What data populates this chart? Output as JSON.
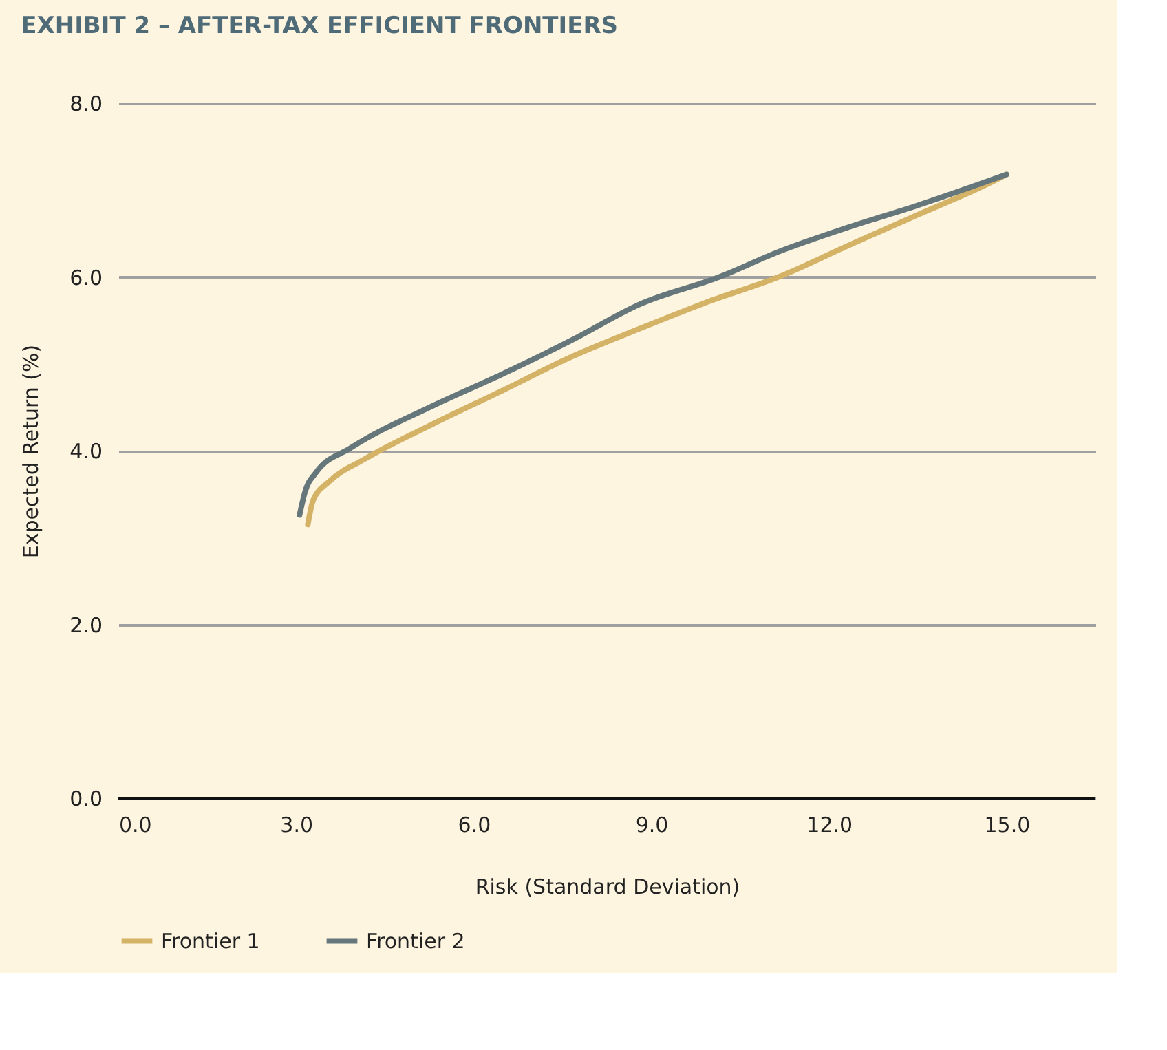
{
  "chart_data": {
    "type": "line",
    "title": "EXHIBIT 2 – AFTER-TAX EFFICIENT FRONTIERS",
    "xlabel": "Risk (Standard Deviation)",
    "ylabel": "Expected Return (%)",
    "xlim": [
      0,
      16.5
    ],
    "xticks": [
      {
        "value": 0,
        "label": "0.0"
      },
      {
        "value": 3,
        "label": "3.0"
      },
      {
        "value": 6,
        "label": "6.0"
      },
      {
        "value": 9,
        "label": "9.0"
      },
      {
        "value": 12,
        "label": "12.0"
      },
      {
        "value": 15,
        "label": "15.0"
      }
    ],
    "ylim": [
      0,
      8
    ],
    "yticks": [
      {
        "value": 0,
        "label": "0.0"
      },
      {
        "value": 2,
        "label": "2.0"
      },
      {
        "value": 4,
        "label": "4.0"
      },
      {
        "value": 6,
        "label": "6.0"
      },
      {
        "value": 8,
        "label": "8.0"
      }
    ],
    "grid": "y",
    "legend": "bottom",
    "marker": "none",
    "line_style": "solid",
    "series": [
      {
        "name": "Frontier 1",
        "color": "#d4b266",
        "x": [
          3.2,
          3.29,
          3.57,
          4.15,
          5.32,
          6.48,
          7.65,
          8.82,
          9.98,
          11.15,
          12.32,
          13.48,
          14.65,
          15.0
        ],
        "values": [
          3.15,
          3.43,
          3.65,
          3.9,
          4.31,
          4.69,
          5.08,
          5.41,
          5.72,
          6.0,
          6.36,
          6.71,
          7.06,
          7.18
        ]
      },
      {
        "name": "Frontier 2",
        "color": "#66777c",
        "x": [
          3.06,
          3.15,
          3.34,
          3.92,
          5.32,
          6.48,
          7.65,
          8.82,
          10.15,
          11.15,
          12.32,
          13.48,
          15.0
        ],
        "values": [
          3.26,
          3.52,
          3.75,
          4.03,
          4.52,
          4.88,
          5.27,
          5.69,
          6.0,
          6.29,
          6.57,
          6.82,
          7.18
        ]
      }
    ]
  }
}
